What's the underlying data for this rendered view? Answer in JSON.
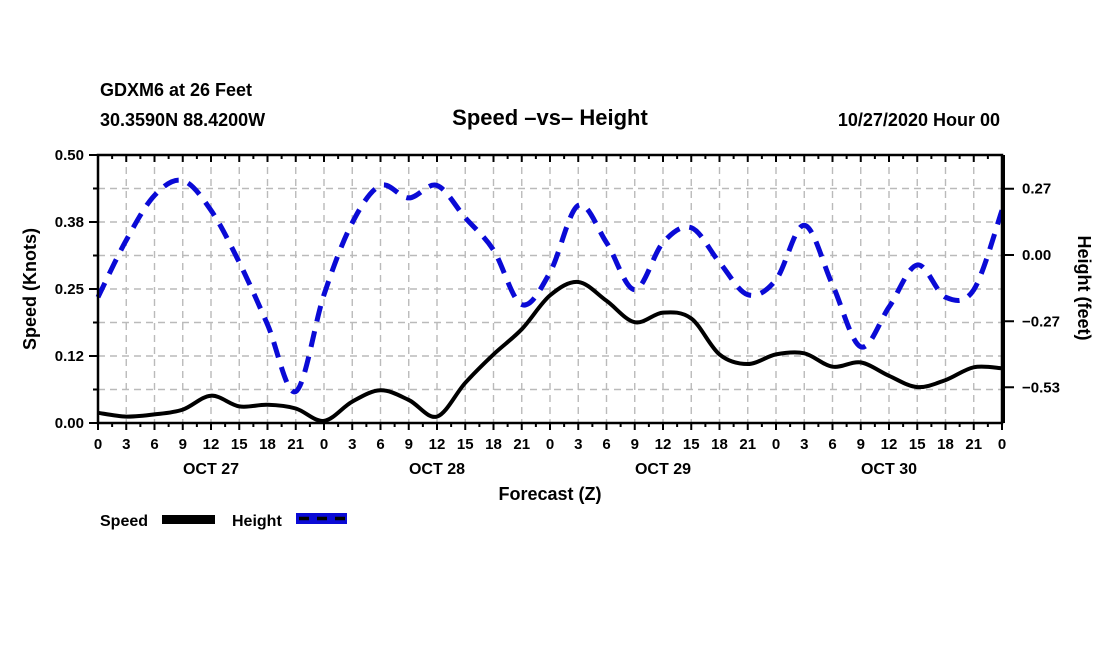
{
  "header": {
    "station_line": "GDXM6 at 26 Feet",
    "coords_line": "30.3590N 88.4200W",
    "title": "Speed –vs– Height",
    "datetime": "10/27/2020 Hour 00"
  },
  "legend": {
    "speed_label": "Speed",
    "height_label": "Height"
  },
  "colors": {
    "speed": "#000000",
    "height": "#0a0ad6",
    "grid": "#bababa"
  },
  "chart_data": {
    "type": "line",
    "title": "Speed –vs– Height",
    "xlabel": "Forecast (Z)",
    "ylabel_left": "Speed (Knots)",
    "ylabel_right": "Height (feet)",
    "x_hours": [
      0,
      3,
      6,
      9,
      12,
      15,
      18,
      21,
      24,
      27,
      30,
      33,
      36,
      39,
      42,
      45,
      48,
      51,
      54,
      57,
      60,
      63,
      66,
      69,
      72,
      75,
      78,
      81,
      84,
      87,
      90,
      93,
      96
    ],
    "hour_tick_step": 3,
    "minor_tick_step": 1.5,
    "day_labels": [
      "OCT 27",
      "OCT 28",
      "OCT 29",
      "OCT 30"
    ],
    "left_axis": {
      "label": "Speed (Knots)",
      "tick_values": [
        0.5,
        0.375,
        0.25,
        0.125,
        0
      ],
      "tick_labels": [
        "0.50",
        "0.38",
        "0.25",
        "0.12",
        "0.00"
      ],
      "minor_tick_values": [
        0.4375,
        0.3125,
        0.1875,
        0.0625
      ],
      "min": 0,
      "max": 0.5
    },
    "right_axis": {
      "label": "Height (feet)",
      "tick_values": [
        0.267,
        0.0,
        -0.267,
        -0.533
      ],
      "tick_labels": [
        "0.27",
        "0.00",
        "−0.27",
        "−0.53"
      ],
      "min": -0.677,
      "max": 0.403
    },
    "grid": true,
    "legend_position": "bottom-left",
    "series": [
      {
        "name": "Speed",
        "axis": "left",
        "style": "solid",
        "color": "#000000",
        "values": [
          0.019,
          0.012,
          0.016,
          0.025,
          0.051,
          0.031,
          0.034,
          0.027,
          0.004,
          0.04,
          0.061,
          0.043,
          0.012,
          0.075,
          0.128,
          0.175,
          0.238,
          0.263,
          0.228,
          0.188,
          0.206,
          0.195,
          0.128,
          0.11,
          0.128,
          0.13,
          0.105,
          0.113,
          0.088,
          0.067,
          0.08,
          0.104,
          0.102
        ]
      },
      {
        "name": "Height",
        "axis": "right",
        "style": "dashed",
        "color": "#0a0ad6",
        "values": [
          -0.17,
          0.06,
          0.24,
          0.3,
          0.18,
          -0.03,
          -0.28,
          -0.55,
          -0.16,
          0.13,
          0.28,
          0.23,
          0.28,
          0.15,
          0.02,
          -0.2,
          -0.07,
          0.2,
          0.05,
          -0.14,
          0.05,
          0.11,
          -0.03,
          -0.16,
          -0.1,
          0.12,
          -0.12,
          -0.37,
          -0.21,
          -0.04,
          -0.17,
          -0.14,
          0.18
        ]
      }
    ]
  }
}
